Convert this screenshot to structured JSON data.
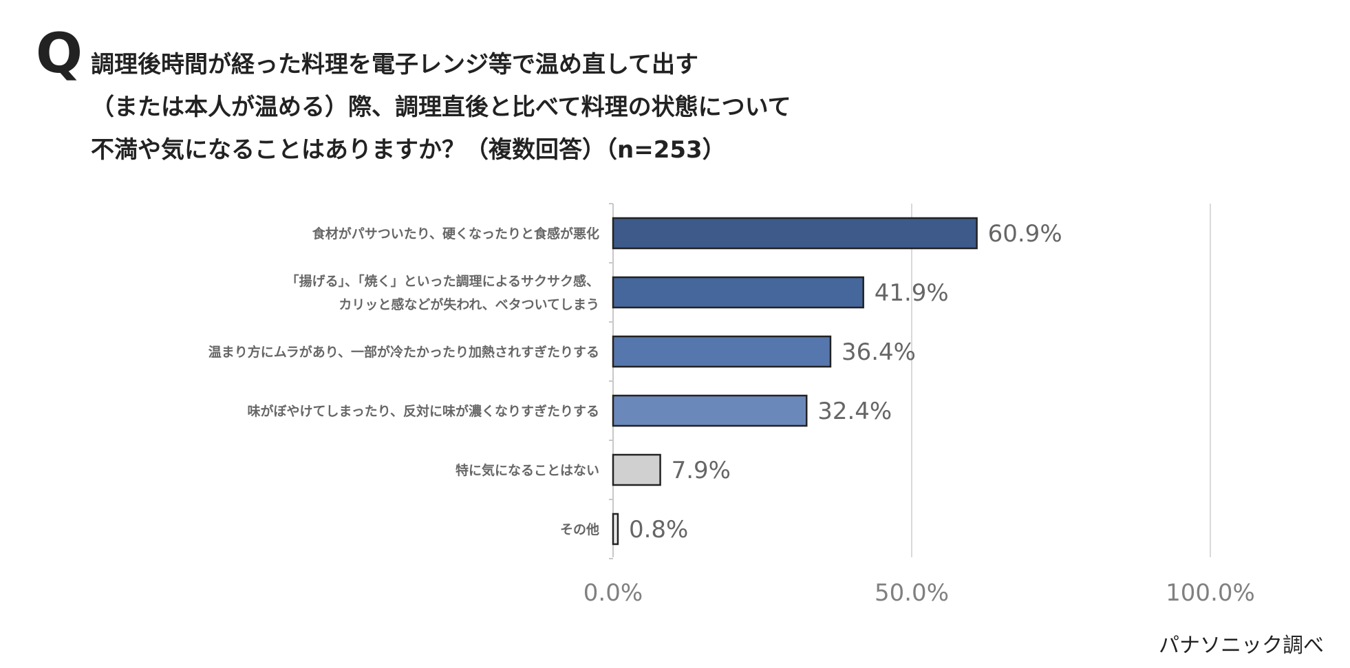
{
  "question": {
    "mark": "Q",
    "lines": [
      "調理後時間が経った料理を電子レンジ等で温め直して出す",
      "（または本人が温める）際、調理直後と比べて料理の状態について",
      "不満や気になることはありますか？（複数回答）（n=253）"
    ]
  },
  "source": "パナソニック調べ",
  "chart_data": {
    "type": "bar",
    "orientation": "horizontal",
    "categories": [
      [
        "食材がパサついたり、硬くなったりと食感が悪化"
      ],
      [
        "「揚げる」、「焼く」といった調理によるサクサク感、",
        "カリッと感などが失われ、ベタついてしまう"
      ],
      [
        "温まり方にムラがあり、一部が冷たかったり加熱されすぎたりする"
      ],
      [
        "味がぼやけてしまったり、反対に味が濃くなりすぎたりする"
      ],
      [
        "特に気になることはない"
      ],
      [
        "その他"
      ]
    ],
    "values": [
      60.9,
      41.9,
      36.4,
      32.4,
      7.9,
      0.8
    ],
    "value_labels": [
      "60.9%",
      "41.9%",
      "36.4%",
      "32.4%",
      "7.9%",
      "0.8%"
    ],
    "bar_colors": [
      "#3d5a8a",
      "#46679c",
      "#5577ad",
      "#6b88bb",
      "#d0d0d0",
      "#e8e8e8"
    ],
    "xlim": [
      0,
      100
    ],
    "ticks": [
      0,
      50,
      100
    ],
    "tick_labels": [
      "0.0%",
      "50.0%",
      "100.0%"
    ],
    "grid": true
  }
}
